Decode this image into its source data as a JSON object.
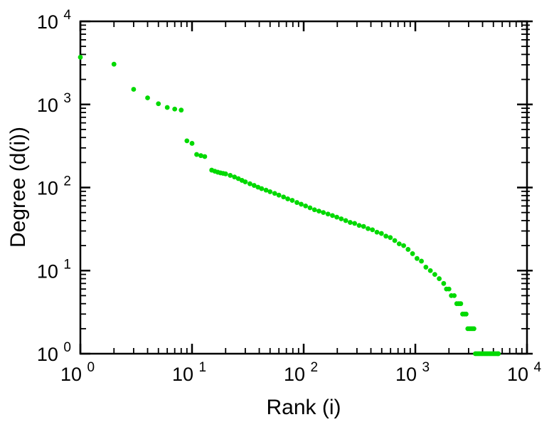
{
  "chart": {
    "title": "",
    "xlabel": "Rank (i)",
    "ylabel": "Degree (d(i))"
  },
  "chart_data": {
    "type": "scatter",
    "title": "",
    "xlabel": "Rank (i)",
    "ylabel": "Degree (d(i))",
    "x_scale": "log",
    "y_scale": "log",
    "xlim": [
      1,
      10000
    ],
    "ylim": [
      1,
      10000
    ],
    "grid": false,
    "legend": "none",
    "x_tick_exponents": [
      0,
      1,
      2,
      3,
      4
    ],
    "y_tick_exponents": [
      0,
      1,
      2,
      3,
      4
    ],
    "tick_label_base": "10",
    "marker_color": "#00d900",
    "axis_color": "#000000",
    "points": [
      [
        1,
        3700
      ],
      [
        2,
        3050
      ],
      [
        3,
        1520
      ],
      [
        4,
        1200
      ],
      [
        5,
        1020
      ],
      [
        6,
        920
      ],
      [
        7,
        880
      ],
      [
        8,
        855
      ],
      [
        9,
        365
      ],
      [
        10,
        340
      ],
      [
        11,
        250
      ],
      [
        12,
        242
      ],
      [
        13,
        236
      ],
      [
        15,
        162
      ],
      [
        16,
        157
      ],
      [
        17,
        153
      ],
      [
        18,
        150
      ],
      [
        19,
        148
      ],
      [
        20,
        146
      ],
      [
        22,
        140
      ],
      [
        24,
        134
      ],
      [
        26,
        128
      ],
      [
        28,
        122
      ],
      [
        30,
        117
      ],
      [
        33,
        111
      ],
      [
        36,
        106
      ],
      [
        39,
        101
      ],
      [
        42,
        97
      ],
      [
        46,
        93
      ],
      [
        50,
        89
      ],
      [
        55,
        85
      ],
      [
        60,
        81
      ],
      [
        66,
        77
      ],
      [
        72,
        73
      ],
      [
        79,
        70
      ],
      [
        87,
        66
      ],
      [
        95,
        63
      ],
      [
        104,
        60
      ],
      [
        114,
        57
      ],
      [
        125,
        54
      ],
      [
        137,
        52
      ],
      [
        150,
        50
      ],
      [
        165,
        48
      ],
      [
        181,
        46
      ],
      [
        198,
        44
      ],
      [
        217,
        42
      ],
      [
        238,
        40
      ],
      [
        261,
        38
      ],
      [
        286,
        37
      ],
      [
        314,
        35
      ],
      [
        344,
        34
      ],
      [
        377,
        32
      ],
      [
        413,
        31
      ],
      [
        453,
        29
      ],
      [
        497,
        28
      ],
      [
        545,
        26
      ],
      [
        597,
        25
      ],
      [
        654,
        23
      ],
      [
        717,
        21
      ],
      [
        786,
        20
      ],
      [
        861,
        18
      ],
      [
        944,
        16
      ],
      [
        1035,
        14
      ],
      [
        1134,
        13
      ],
      [
        1243,
        11
      ],
      [
        1363,
        10
      ],
      [
        1494,
        9
      ],
      [
        1637,
        8
      ],
      [
        1795,
        7
      ],
      [
        1900,
        6
      ],
      [
        2000,
        6
      ],
      [
        2100,
        5
      ],
      [
        2230,
        5
      ],
      [
        2350,
        4
      ],
      [
        2450,
        4
      ],
      [
        2550,
        4
      ],
      [
        2650,
        3
      ],
      [
        2750,
        3
      ],
      [
        2850,
        3
      ],
      [
        2950,
        2
      ],
      [
        3050,
        2
      ],
      [
        3150,
        2
      ],
      [
        3250,
        2
      ],
      [
        3350,
        2
      ],
      [
        3450,
        1
      ],
      [
        3560,
        1
      ],
      [
        3670,
        1
      ],
      [
        3780,
        1
      ],
      [
        3900,
        1
      ],
      [
        4020,
        1
      ],
      [
        4150,
        1
      ],
      [
        4280,
        1
      ],
      [
        4410,
        1
      ],
      [
        4550,
        1
      ],
      [
        4690,
        1
      ],
      [
        4840,
        1
      ],
      [
        4990,
        1
      ],
      [
        5150,
        1
      ],
      [
        5310,
        1
      ],
      [
        5470,
        1
      ],
      [
        5540,
        1
      ]
    ]
  }
}
